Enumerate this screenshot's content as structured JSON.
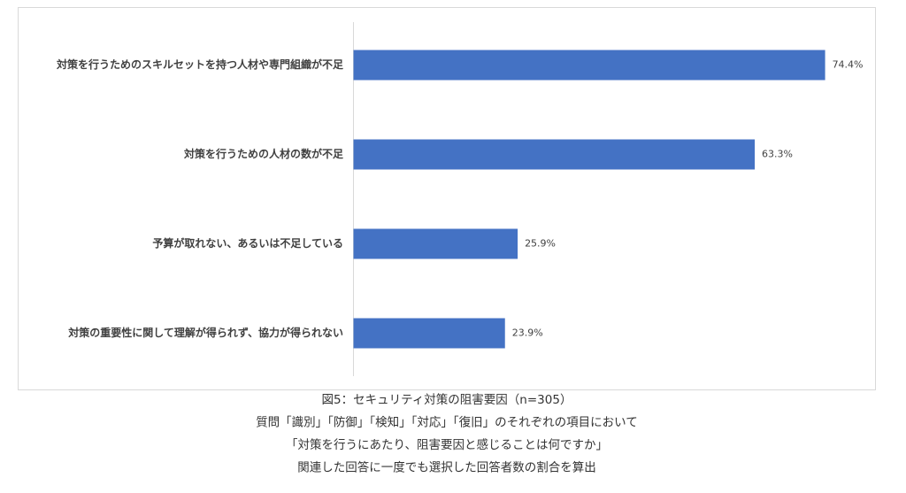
{
  "chart_data": {
    "type": "bar",
    "orientation": "horizontal",
    "categories": [
      "対策を行うためのスキルセットを持つ人材や専門組織が不足",
      "対策を行うための人材の数が不足",
      "予算が取れない、あるいは不足している",
      "対策の重要性に関して理解が得られず、協力が得られない"
    ],
    "values": [
      74.4,
      63.3,
      25.9,
      23.9
    ],
    "value_labels": [
      "74.4%",
      "63.3%",
      "25.9%",
      "23.9%"
    ],
    "color": "#4472c4",
    "caption": [
      "図5：セキュリティ対策の阻害要因（n=305）",
      "質問「識別」「防御」「検知」「対応」「復旧」のそれぞれの項目において",
      "「対策を行うにあたり、阻害要因と感じることは何ですか」",
      "関連した回答に一度でも選択した回答者数の割合を算出"
    ]
  }
}
